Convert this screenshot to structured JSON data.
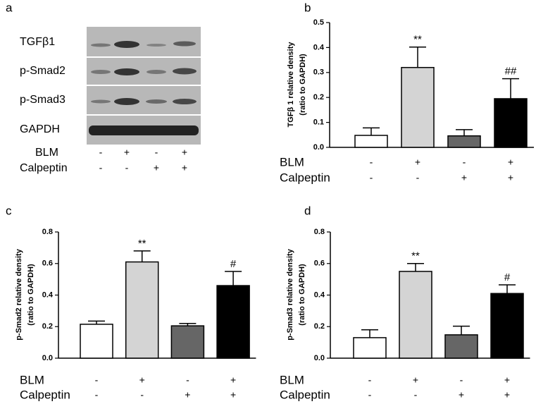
{
  "blot": {
    "label": "a",
    "rows": [
      "TGFβ1",
      "p-Smad2",
      "p-Smad3",
      "GAPDH"
    ],
    "conditions": [
      {
        "name": "BLM",
        "signs": [
          "-",
          "+",
          "-",
          "+"
        ]
      },
      {
        "name": "Calpeptin",
        "signs": [
          "-",
          "-",
          "+",
          "+"
        ]
      }
    ]
  },
  "chart_data": [
    {
      "type": "bar",
      "panel_label": "b",
      "ylabel": "TGFβ 1 relative density",
      "ylabel_sub": "(ratio to GAPDH)",
      "values": [
        0.048,
        0.32,
        0.046,
        0.195
      ],
      "errors": [
        0.03,
        0.082,
        0.025,
        0.08
      ],
      "colors": [
        "#ffffff",
        "#d4d4d4",
        "#666666",
        "#000000"
      ],
      "ylim": [
        0,
        0.5
      ],
      "yticks": [
        {
          "value": 0,
          "label": "0.0"
        },
        0.1,
        0.2,
        0.3,
        0.4,
        0.5
      ],
      "annotations": [
        {
          "bar": 1,
          "text": "**"
        },
        {
          "bar": 3,
          "text": "##"
        }
      ],
      "conditions": [
        {
          "name": "BLM",
          "signs": [
            "-",
            "+",
            "-",
            "+"
          ]
        },
        {
          "name": "Calpeptin",
          "signs": [
            "-",
            "-",
            "+",
            "+"
          ]
        }
      ]
    },
    {
      "type": "bar",
      "panel_label": "c",
      "ylabel": "p-Smad2 relative density",
      "ylabel_sub": "(ratio to GAPDH)",
      "values": [
        0.215,
        0.61,
        0.205,
        0.46
      ],
      "errors": [
        0.02,
        0.07,
        0.015,
        0.09
      ],
      "colors": [
        "#ffffff",
        "#d4d4d4",
        "#666666",
        "#000000"
      ],
      "ylim": [
        0,
        0.8
      ],
      "yticks": [
        {
          "value": 0,
          "label": "0.0"
        },
        0.2,
        0.4,
        0.6,
        0.8
      ],
      "annotations": [
        {
          "bar": 1,
          "text": "**"
        },
        {
          "bar": 3,
          "text": "#"
        }
      ],
      "conditions": [
        {
          "name": "BLM",
          "signs": [
            "-",
            "+",
            "-",
            "+"
          ]
        },
        {
          "name": "Calpeptin",
          "signs": [
            "-",
            "-",
            "+",
            "+"
          ]
        }
      ]
    },
    {
      "type": "bar",
      "panel_label": "d",
      "ylabel": "p-Smad3 relative density",
      "ylabel_sub": "(ratio to GAPDH)",
      "values": [
        0.13,
        0.55,
        0.148,
        0.41
      ],
      "errors": [
        0.05,
        0.05,
        0.055,
        0.055
      ],
      "colors": [
        "#ffffff",
        "#d4d4d4",
        "#666666",
        "#000000"
      ],
      "ylim": [
        0,
        0.8
      ],
      "yticks": [
        {
          "value": 0,
          "label": "0.0"
        },
        0.2,
        0.4,
        0.6,
        0.8
      ],
      "annotations": [
        {
          "bar": 1,
          "text": "**"
        },
        {
          "bar": 3,
          "text": "#"
        }
      ],
      "conditions": [
        {
          "name": "BLM",
          "signs": [
            "-",
            "+",
            "-",
            "+"
          ]
        },
        {
          "name": "Calpeptin",
          "signs": [
            "-",
            "-",
            "+",
            "+"
          ]
        }
      ]
    }
  ]
}
